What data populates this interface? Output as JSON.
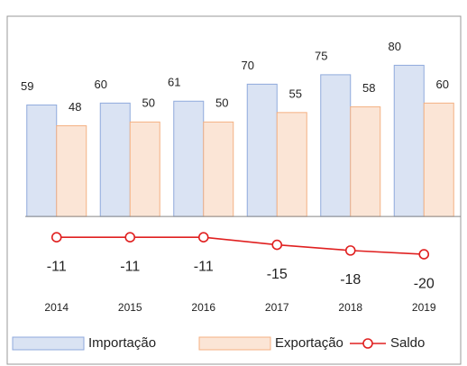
{
  "chart_data": {
    "type": "bar",
    "categories": [
      "2014",
      "2015",
      "2016",
      "2017",
      "2018",
      "2019"
    ],
    "series": [
      {
        "name": "Importação",
        "type": "bar",
        "color": "#dae3f3",
        "edge": "#8faadc",
        "values": [
          59,
          60,
          61,
          70,
          75,
          80
        ]
      },
      {
        "name": "Exportação",
        "type": "bar",
        "color": "#fbe5d6",
        "edge": "#f4b183",
        "values": [
          48,
          50,
          50,
          55,
          58,
          60
        ]
      },
      {
        "name": "Saldo",
        "type": "line",
        "color": "#e02020",
        "values": [
          -11,
          -11,
          -11,
          -15,
          -18,
          -20
        ]
      }
    ],
    "ylim": [
      -40,
      105
    ],
    "legend": "bottom"
  }
}
